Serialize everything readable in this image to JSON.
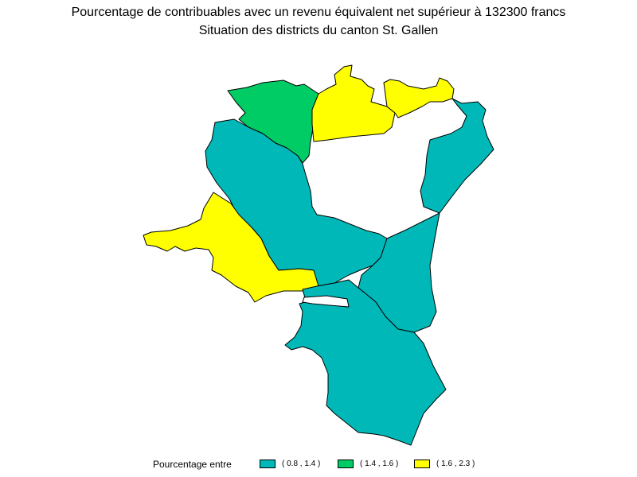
{
  "title": "Pourcentage de contribuables avec un revenu équivalent net supérieur à 132300 francs",
  "subtitle": "Situation des districts du canton St. Gallen",
  "legend": {
    "heading": "Pourcentage entre",
    "classes": [
      {
        "range": "( 0.8 , 1.4 )",
        "color": "#00b8b8"
      },
      {
        "range": "( 1.4 , 1.6 )",
        "color": "#00cc66"
      },
      {
        "range": "( 1.6 , 2.3 )",
        "color": "#ffff00"
      }
    ]
  },
  "colors": {
    "lake": "#ffffff",
    "border": "#000000"
  }
}
